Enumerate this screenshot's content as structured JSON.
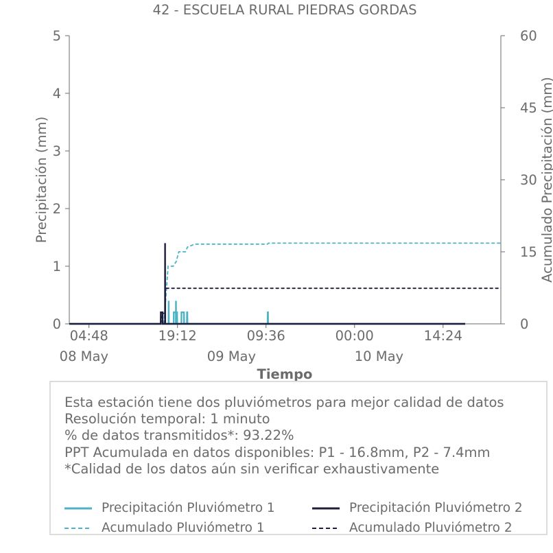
{
  "chart_data": {
    "type": "line",
    "title": "42 - ESCUELA RURAL PIEDRAS GORDAS",
    "xlabel": "Tiempo",
    "ylabel_left": "Precipitación (mm)",
    "ylabel_right": "Acumulado Precipitación (mm)",
    "ylim_left": [
      0,
      5
    ],
    "ylim_right": [
      0,
      60
    ],
    "yticks_left": [
      "0",
      "1",
      "2",
      "3",
      "4",
      "5"
    ],
    "yticks_right": [
      "0",
      "15",
      "30",
      "45",
      "60"
    ],
    "xlim": [
      "2024-05-08 01:36",
      "2024-05-10 23:48"
    ],
    "x_ticks": [
      {
        "t": "2024-05-08 04:48",
        "label": "04:48"
      },
      {
        "t": "2024-05-08 19:12",
        "label": "19:12"
      },
      {
        "t": "2024-05-09 09:36",
        "label": "09:36"
      },
      {
        "t": "2024-05-10 00:00",
        "label": "00:00"
      },
      {
        "t": "2024-05-10 14:24",
        "label": "14:24"
      }
    ],
    "x_date_labels": [
      {
        "t": "2024-05-08 00:00",
        "label": "08 May"
      },
      {
        "t": "2024-05-09 00:00",
        "label": "09 May"
      },
      {
        "t": "2024-05-10 00:00",
        "label": "10 May"
      }
    ],
    "grid": false,
    "series": [
      {
        "name": "Precipitación Pluviómetro 1",
        "axis": "left",
        "style": "solid",
        "color": "#4bb3c4",
        "points": [
          [
            "2024-05-08 01:36",
            0
          ],
          [
            "2024-05-08 17:45",
            0
          ],
          [
            "2024-05-08 17:46",
            0.4
          ],
          [
            "2024-05-08 17:47",
            0
          ],
          [
            "2024-05-08 18:35",
            0
          ],
          [
            "2024-05-08 18:36",
            0.2
          ],
          [
            "2024-05-08 19:08",
            0.2
          ],
          [
            "2024-05-08 19:09",
            0
          ],
          [
            "2024-05-08 18:56",
            0
          ],
          [
            "2024-05-08 18:57",
            0.4
          ],
          [
            "2024-05-08 18:58",
            0
          ],
          [
            "2024-05-08 19:50",
            0
          ],
          [
            "2024-05-08 19:51",
            0.2
          ],
          [
            "2024-05-08 20:15",
            0.2
          ],
          [
            "2024-05-08 20:16",
            0
          ],
          [
            "2024-05-08 20:44",
            0
          ],
          [
            "2024-05-08 20:45",
            0.2
          ],
          [
            "2024-05-08 20:48",
            0.2
          ],
          [
            "2024-05-08 20:49",
            0
          ],
          [
            "2024-05-09 09:52",
            0
          ],
          [
            "2024-05-09 09:53",
            0.2
          ],
          [
            "2024-05-09 09:55",
            0.2
          ],
          [
            "2024-05-09 09:56",
            0
          ],
          [
            "2024-05-10 18:00",
            0
          ]
        ]
      },
      {
        "name": "Precipitación Pluviómetro 2",
        "axis": "left",
        "style": "solid",
        "color": "#1f1d3d",
        "points": [
          [
            "2024-05-08 01:36",
            0
          ],
          [
            "2024-05-08 16:28",
            0
          ],
          [
            "2024-05-08 16:29",
            0.2
          ],
          [
            "2024-05-08 16:46",
            0.2
          ],
          [
            "2024-05-08 16:47",
            0
          ],
          [
            "2024-05-08 17:10",
            0
          ],
          [
            "2024-05-08 17:11",
            1.4
          ],
          [
            "2024-05-08 17:12",
            0
          ],
          [
            "2024-05-10 18:00",
            0
          ]
        ]
      },
      {
        "name": "Acumulado Pluviómetro 1",
        "axis": "right",
        "style": "dashed",
        "color": "#4bb3c4",
        "points": [
          [
            "2024-05-08 17:00",
            0
          ],
          [
            "2024-05-08 17:20",
            6
          ],
          [
            "2024-05-08 17:40",
            12
          ],
          [
            "2024-05-08 18:30",
            12
          ],
          [
            "2024-05-08 19:00",
            13
          ],
          [
            "2024-05-08 19:25",
            15
          ],
          [
            "2024-05-08 20:30",
            15
          ],
          [
            "2024-05-08 20:50",
            16
          ],
          [
            "2024-05-08 22:00",
            16.6
          ],
          [
            "2024-05-09 09:50",
            16.6
          ],
          [
            "2024-05-09 10:00",
            16.8
          ],
          [
            "2024-05-10 23:48",
            16.8
          ]
        ]
      },
      {
        "name": "Acumulado Pluviómetro 2",
        "axis": "right",
        "style": "dashed",
        "color": "#1f1d3d",
        "points": [
          [
            "2024-05-08 16:28",
            0
          ],
          [
            "2024-05-08 16:50",
            2.2
          ],
          [
            "2024-05-08 17:10",
            2.2
          ],
          [
            "2024-05-08 17:12",
            7.4
          ],
          [
            "2024-05-10 23:48",
            7.4
          ]
        ]
      }
    ]
  },
  "info": {
    "lines": [
      "Esta estación tiene dos pluviómetros para mejor calidad de datos",
      "Resolución temporal: 1 minuto",
      "% de datos transmitidos*: 93.22%",
      "PPT Acumulada en datos disponibles: P1 - 16.8mm, P2 - 7.4mm",
      "*Calidad de los datos aún sin verificar exhaustivamente"
    ]
  },
  "legend": [
    {
      "label": "Precipitación Pluviómetro 1",
      "color": "#4bb3c4",
      "style": "solid"
    },
    {
      "label": "Precipitación Pluviómetro 2",
      "color": "#1f1d3d",
      "style": "solid"
    },
    {
      "label": "Acumulado Pluviómetro 1",
      "color": "#4bb3c4",
      "style": "dashed"
    },
    {
      "label": "Acumulado Pluviómetro 2",
      "color": "#1f1d3d",
      "style": "dashed"
    }
  ]
}
